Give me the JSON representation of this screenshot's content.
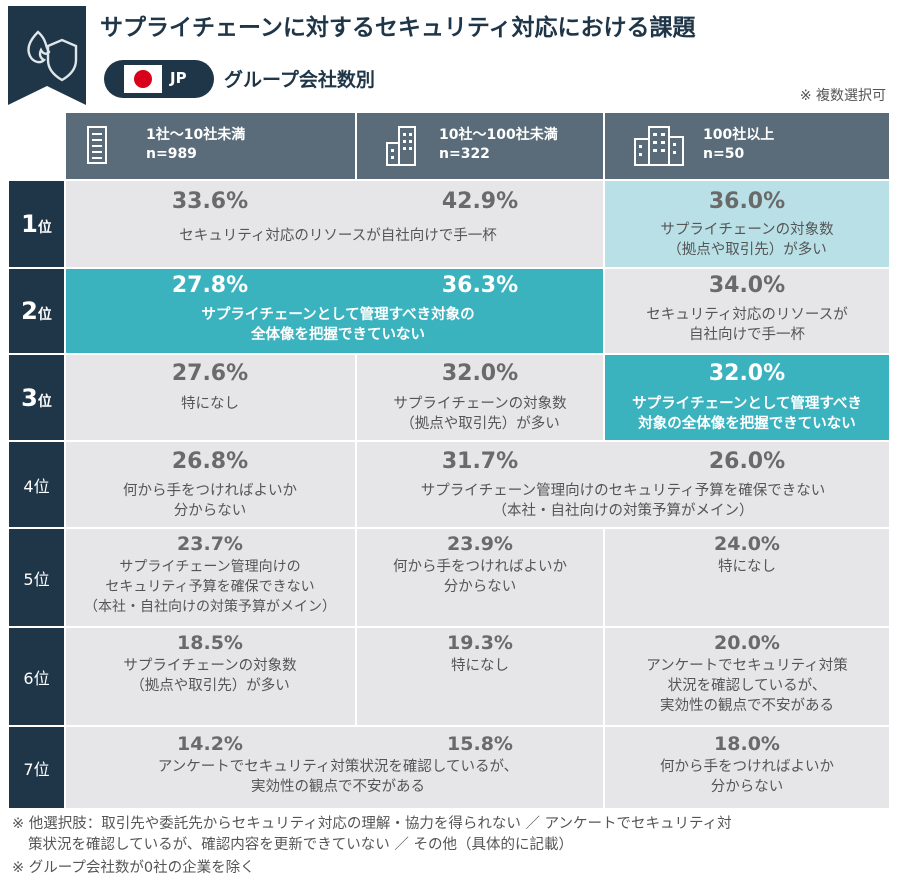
{
  "title": "サプライチェーンに対するセキュリティ対応における課題",
  "country": "JP",
  "subtitle": "グループ会社数別",
  "note": "※ 複数選択可",
  "columns": [
    {
      "label": "1社～10社未満",
      "n": "n=989",
      "icon": "building-small-icon"
    },
    {
      "label": "10社～100社未満",
      "n": "n=322",
      "icon": "building-medium-icon"
    },
    {
      "label": "100社以上",
      "n": "n=50",
      "icon": "building-large-icon"
    }
  ],
  "ranks": [
    {
      "num": "1",
      "unit": "位"
    },
    {
      "num": "2",
      "unit": "位"
    },
    {
      "num": "3",
      "unit": "位"
    },
    {
      "label": "4位"
    },
    {
      "label": "5位"
    },
    {
      "label": "6位"
    },
    {
      "label": "7位"
    }
  ],
  "chart_data": {
    "type": "table",
    "title": "サプライチェーンに対するセキュリティ対応における課題",
    "columns": [
      "1社～10社未満",
      "10社～100社未満",
      "100社以上"
    ],
    "rows": [
      {
        "rank": "1位",
        "pct": [
          "33.6%",
          "42.9%",
          "36.0%"
        ],
        "items": [
          {
            "text": "セキュリティ対応のリソースが自社向けで手一杯",
            "span": [
              1,
              2
            ]
          },
          {
            "lines": [
              "サプライチェーンの対象数",
              "（拠点や取引先）が多い"
            ],
            "span": [
              3
            ]
          }
        ]
      },
      {
        "rank": "2位",
        "pct": [
          "27.8%",
          "36.3%",
          "34.0%"
        ],
        "items": [
          {
            "lines": [
              "サプライチェーンとして管理すべき対象の",
              "全体像を把握できていない"
            ],
            "span": [
              1,
              2
            ]
          },
          {
            "lines": [
              "セキュリティ対応のリソースが",
              "自社向けで手一杯"
            ],
            "span": [
              3
            ]
          }
        ]
      },
      {
        "rank": "3位",
        "pct": [
          "27.6%",
          "32.0%",
          "32.0%"
        ],
        "items": [
          {
            "text": "特になし",
            "span": [
              1
            ]
          },
          {
            "lines": [
              "サプライチェーンの対象数",
              "（拠点や取引先）が多い"
            ],
            "span": [
              2
            ]
          },
          {
            "lines": [
              "サプライチェーンとして管理すべき",
              "対象の全体像を把握できていない"
            ],
            "span": [
              3
            ]
          }
        ]
      },
      {
        "rank": "4位",
        "pct": [
          "26.8%",
          "31.7%",
          "26.0%"
        ],
        "items": [
          {
            "lines": [
              "何から手をつければよいか",
              "分からない"
            ],
            "span": [
              1
            ]
          },
          {
            "lines": [
              "サプライチェーン管理向けのセキュリティ予算を確保できない",
              "（本社・自社向けの対策予算がメイン）"
            ],
            "span": [
              2,
              3
            ]
          }
        ]
      },
      {
        "rank": "5位",
        "pct": [
          "23.7%",
          "23.9%",
          "24.0%"
        ],
        "items": [
          {
            "lines": [
              "サプライチェーン管理向けの",
              "セキュリティ予算を確保できない",
              "（本社・自社向けの対策予算がメイン）"
            ],
            "span": [
              1
            ]
          },
          {
            "lines": [
              "何から手をつければよいか",
              "分からない"
            ],
            "span": [
              2
            ]
          },
          {
            "text": "特になし",
            "span": [
              3
            ]
          }
        ]
      },
      {
        "rank": "6位",
        "pct": [
          "18.5%",
          "19.3%",
          "20.0%"
        ],
        "items": [
          {
            "lines": [
              "サプライチェーンの対象数",
              "（拠点や取引先）が多い"
            ],
            "span": [
              1
            ]
          },
          {
            "text": "特になし",
            "span": [
              2
            ]
          },
          {
            "lines": [
              "アンケートでセキュリティ対策",
              "状況を確認しているが、",
              "実効性の観点で不安がある"
            ],
            "span": [
              3
            ]
          }
        ]
      },
      {
        "rank": "7位",
        "pct": [
          "14.2%",
          "15.8%",
          "18.0%"
        ],
        "items": [
          {
            "lines": [
              "アンケートでセキュリティ対策状況を確認しているが、",
              "実効性の観点で不安がある"
            ],
            "span": [
              1,
              2
            ]
          },
          {
            "lines": [
              "何から手をつければよいか",
              "分からない"
            ],
            "span": [
              3
            ]
          }
        ]
      }
    ]
  },
  "footnotes": [
    "※ 他選択肢：取引先や委託先からセキュリティ対応の理解・協力を得られない ／ アンケートでセキュリティ対",
    "策状況を確認しているが、確認内容を更新できていない ／ その他（具体的に記載）",
    "※ グループ会社数が0社の企業を除く"
  ],
  "colors": {
    "navy": "#1f3649",
    "header": "#5a6c79",
    "cell": "#e6e6e8",
    "highlight_light": "#b8e0e6",
    "highlight_dark": "#3bb3bf",
    "flag_red": "#d9001b"
  }
}
